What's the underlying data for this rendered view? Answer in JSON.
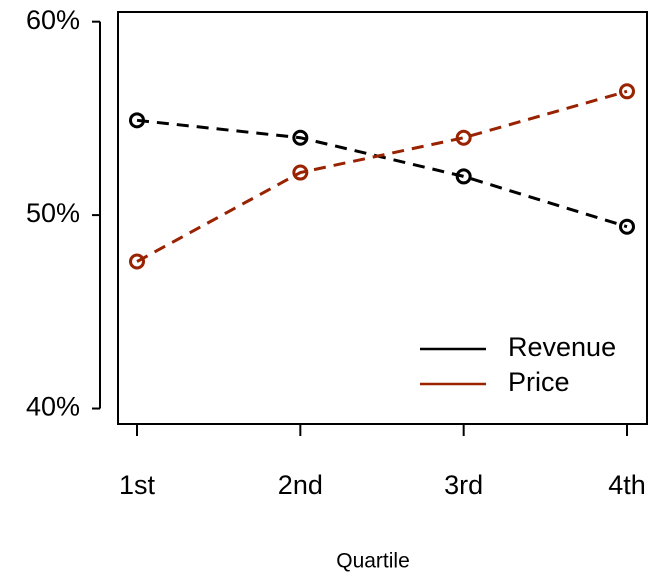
{
  "chart_data": {
    "type": "line",
    "x_label": "Quartile",
    "categories": [
      "1st",
      "2nd",
      "3rd",
      "4th"
    ],
    "series": [
      {
        "name": "Revenue",
        "color": "#000000",
        "values": [
          54.9,
          54.0,
          52.0,
          49.4
        ]
      },
      {
        "name": "Price",
        "color": "#992200",
        "values": [
          47.6,
          52.2,
          54.0,
          56.4
        ]
      }
    ],
    "ylim": [
      39.2,
      60.5
    ],
    "yticks": [
      {
        "value": 40,
        "label": "40%"
      },
      {
        "value": 50,
        "label": "50%"
      },
      {
        "value": 60,
        "label": "60%"
      }
    ],
    "legend": "lower right"
  }
}
